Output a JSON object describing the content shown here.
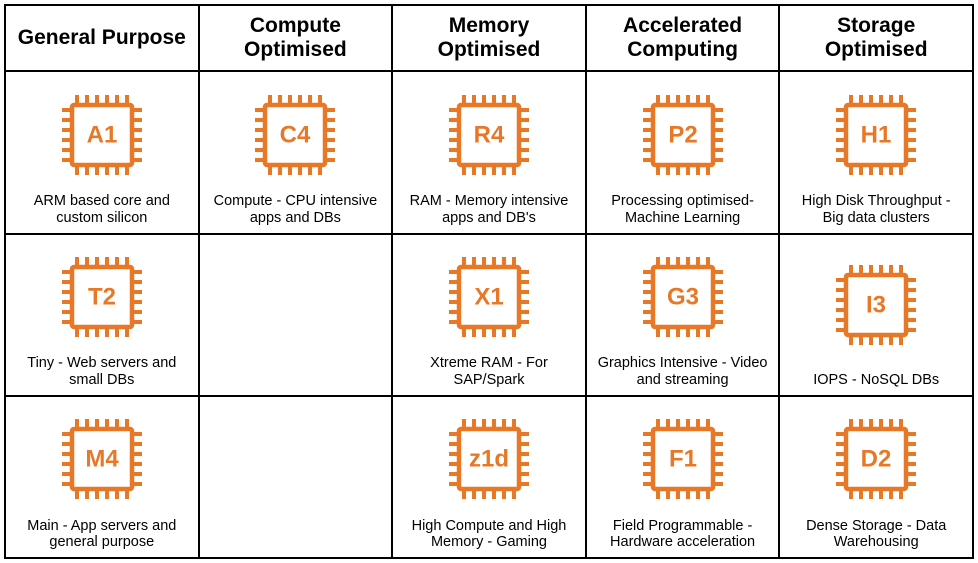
{
  "icon_color": "#e77828",
  "text_color": "#000000",
  "background_color": "#ffffff",
  "border_color": "#000000",
  "chip_label_fontsize": 24,
  "header_fontsize": 21,
  "desc_fontsize": 14.5,
  "columns": [
    {
      "title": "General Purpose"
    },
    {
      "title": "Compute Optimised"
    },
    {
      "title": "Memory Optimised"
    },
    {
      "title": "Accelerated Computing"
    },
    {
      "title": "Storage Optimised"
    }
  ],
  "rows": [
    [
      {
        "code": "A1",
        "desc": "ARM based core and custom silicon"
      },
      {
        "code": "C4",
        "desc": "Compute - CPU intensive apps and DBs"
      },
      {
        "code": "R4",
        "desc": "RAM - Memory intensive apps and DB's"
      },
      {
        "code": "P2",
        "desc": "Processing optimised- Machine Learning"
      },
      {
        "code": "H1",
        "desc": "High Disk Throughput - Big data clusters"
      }
    ],
    [
      {
        "code": "T2",
        "desc": "Tiny - Web servers and small DBs"
      },
      null,
      {
        "code": "X1",
        "desc": "Xtreme RAM - For SAP/Spark"
      },
      {
        "code": "G3",
        "desc": "Graphics Intensive - Video and streaming"
      },
      {
        "code": "I3",
        "desc": "IOPS - NoSQL DBs"
      }
    ],
    [
      {
        "code": "M4",
        "desc": "Main - App servers and general purpose"
      },
      null,
      {
        "code": "z1d",
        "desc": "High Compute and High Memory - Gaming"
      },
      {
        "code": "F1",
        "desc": "Field Programmable - Hardware acceleration"
      },
      {
        "code": "D2",
        "desc": "Dense Storage - Data Warehousing"
      }
    ]
  ]
}
